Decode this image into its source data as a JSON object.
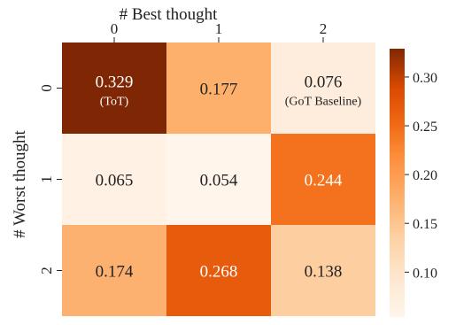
{
  "chart_data": {
    "type": "heatmap",
    "xlabel": "# Best thought",
    "ylabel": "# Worst thought",
    "x_categories": [
      "0",
      "1",
      "2"
    ],
    "y_categories": [
      "0",
      "1",
      "2"
    ],
    "values": [
      [
        0.329,
        0.177,
        0.076
      ],
      [
        0.065,
        0.054,
        0.244
      ],
      [
        0.174,
        0.268,
        0.138
      ]
    ],
    "value_labels": [
      [
        "0.329",
        "0.177",
        "0.076"
      ],
      [
        "0.065",
        "0.054",
        "0.244"
      ],
      [
        "0.174",
        "0.268",
        "0.138"
      ]
    ],
    "cell_annotations": [
      [
        "(ToT)",
        "",
        "(GoT Baseline)"
      ],
      [
        "",
        "",
        ""
      ],
      [
        "",
        "",
        ""
      ]
    ],
    "colorbar": {
      "ticks": [
        0.1,
        0.15,
        0.2,
        0.25,
        0.3
      ],
      "tick_labels": [
        "0.10",
        "0.15",
        "0.20",
        "0.25",
        "0.30"
      ],
      "vmin": 0.054,
      "vmax": 0.329
    },
    "colormap": "Oranges",
    "x_axis_position": "top"
  }
}
